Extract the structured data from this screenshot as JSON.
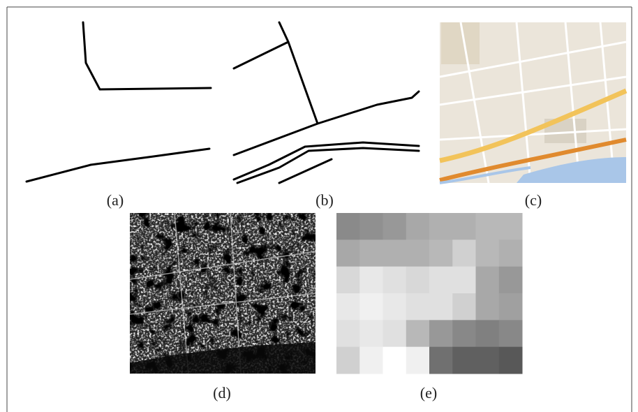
{
  "panels": [
    {
      "label": "(a)"
    },
    {
      "label": "(b)"
    },
    {
      "label": "(c)"
    },
    {
      "label": "(d)"
    },
    {
      "label": "(e)"
    }
  ]
}
